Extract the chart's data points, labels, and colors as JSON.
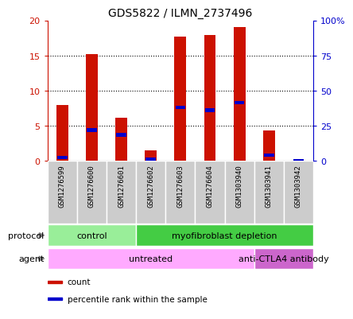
{
  "title": "GDS5822 / ILMN_2737496",
  "samples": [
    "GSM1276599",
    "GSM1276600",
    "GSM1276601",
    "GSM1276602",
    "GSM1276603",
    "GSM1276604",
    "GSM1303940",
    "GSM1303941",
    "GSM1303942"
  ],
  "counts": [
    8.0,
    15.2,
    6.2,
    1.5,
    17.7,
    17.9,
    19.0,
    4.3,
    0.0
  ],
  "percentile_ranks": [
    2.5,
    22.0,
    18.5,
    1.0,
    38.0,
    36.0,
    41.5,
    4.0,
    0.0
  ],
  "ylim_left": [
    0,
    20
  ],
  "ylim_right": [
    0,
    100
  ],
  "yticks_left": [
    0,
    5,
    10,
    15,
    20
  ],
  "yticks_right": [
    0,
    25,
    50,
    75,
    100
  ],
  "ytick_labels_right": [
    "0",
    "25",
    "50",
    "75",
    "100%"
  ],
  "ytick_labels_left": [
    "0",
    "5",
    "10",
    "15",
    "20"
  ],
  "bar_color": "#cc1100",
  "percentile_color": "#0000cc",
  "protocol_groups": [
    {
      "label": "control",
      "start": 0,
      "end": 3,
      "color": "#99ee99"
    },
    {
      "label": "myofibroblast depletion",
      "start": 3,
      "end": 9,
      "color": "#44cc44"
    }
  ],
  "agent_groups": [
    {
      "label": "untreated",
      "start": 0,
      "end": 7,
      "color": "#ffaaff"
    },
    {
      "label": "anti-CTLA4 antibody",
      "start": 7,
      "end": 9,
      "color": "#cc66cc"
    }
  ],
  "legend_items": [
    {
      "label": "count",
      "color": "#cc1100"
    },
    {
      "label": "percentile rank within the sample",
      "color": "#0000cc"
    }
  ],
  "sample_bg_color": "#cccccc",
  "bar_width": 0.4
}
